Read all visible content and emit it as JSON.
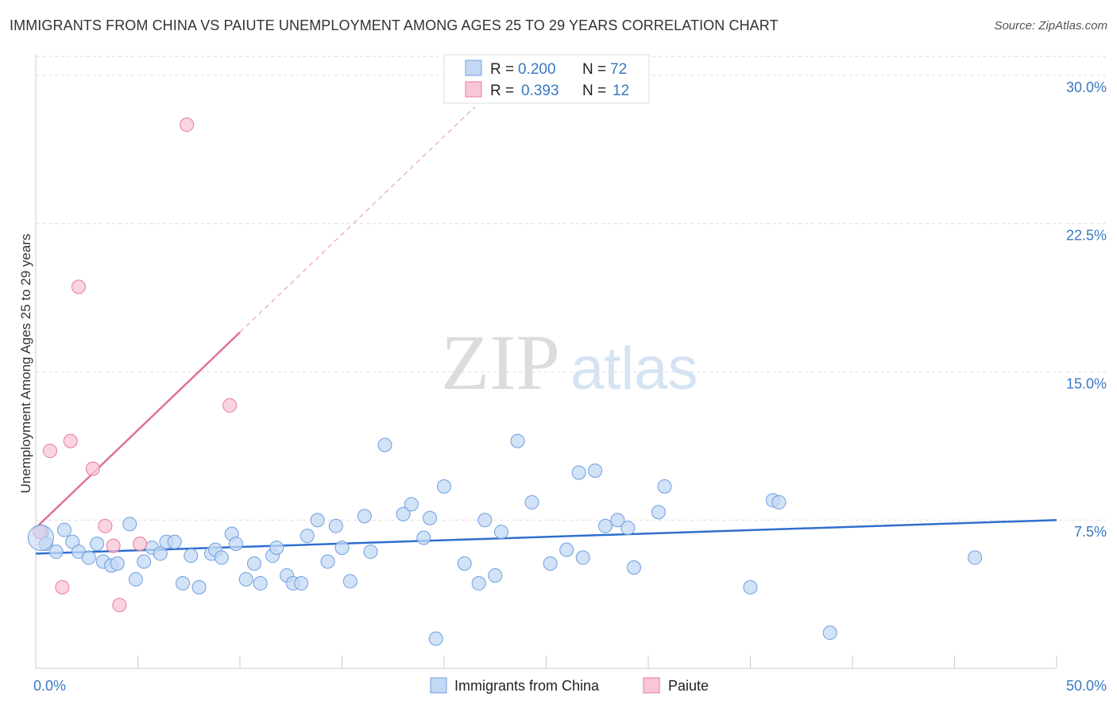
{
  "title": "IMMIGRANTS FROM CHINA VS PAIUTE UNEMPLOYMENT AMONG AGES 25 TO 29 YEARS CORRELATION CHART",
  "source": "Source: ZipAtlas.com",
  "watermark": {
    "zip": "ZIP",
    "atlas": "atlas"
  },
  "colors": {
    "china": "#6f9fde",
    "china_fill": "#c3d8f4",
    "paiute": "#e8799b",
    "paiute_fill": "#f8c6d5",
    "axis_label": "#3a78c3"
  },
  "legend": {
    "rows": [
      {
        "r_label": "R =",
        "r_value": "0.200",
        "n_label": "N =",
        "n_value": "72"
      },
      {
        "r_label": "R =",
        "r_value": "0.393",
        "n_label": "N =",
        "n_value": "12"
      }
    ]
  },
  "bottom_legend": [
    "Immigrants from China",
    "Paiute"
  ],
  "chart_data": {
    "type": "scatter",
    "title": "IMMIGRANTS FROM CHINA VS PAIUTE UNEMPLOYMENT AMONG AGES 25 TO 29 YEARS CORRELATION CHART",
    "xlabel": "",
    "ylabel": "Unemployment Among Ages 25 to 29 years",
    "xlim": [
      0,
      50
    ],
    "ylim": [
      0,
      31
    ],
    "x_tick_labels": [
      "0.0%",
      "50.0%"
    ],
    "y_ticks": [
      7.5,
      15.0,
      22.5,
      30.0
    ],
    "y_tick_labels": [
      "7.5%",
      "15.0%",
      "22.5%",
      "30.0%"
    ],
    "grid": "horizontal dashed",
    "legend_position": "top-center",
    "series": [
      {
        "name": "Immigrants from China",
        "trend": {
          "x": [
            0,
            50
          ],
          "y": [
            5.8,
            7.5
          ]
        },
        "points": [
          [
            0.3,
            6.9
          ],
          [
            0.5,
            6.3
          ],
          [
            1.0,
            5.9
          ],
          [
            1.4,
            7.0
          ],
          [
            1.8,
            6.4
          ],
          [
            2.1,
            5.9
          ],
          [
            2.6,
            5.6
          ],
          [
            3.0,
            6.3
          ],
          [
            3.3,
            5.4
          ],
          [
            3.7,
            5.2
          ],
          [
            4.0,
            5.3
          ],
          [
            4.6,
            7.3
          ],
          [
            4.9,
            4.5
          ],
          [
            5.3,
            5.4
          ],
          [
            5.7,
            6.1
          ],
          [
            6.1,
            5.8
          ],
          [
            6.4,
            6.4
          ],
          [
            6.8,
            6.4
          ],
          [
            7.2,
            4.3
          ],
          [
            7.6,
            5.7
          ],
          [
            8.0,
            4.1
          ],
          [
            8.6,
            5.8
          ],
          [
            8.8,
            6.0
          ],
          [
            9.1,
            5.6
          ],
          [
            9.6,
            6.8
          ],
          [
            9.8,
            6.3
          ],
          [
            10.3,
            4.5
          ],
          [
            10.7,
            5.3
          ],
          [
            11.0,
            4.3
          ],
          [
            11.6,
            5.7
          ],
          [
            11.8,
            6.1
          ],
          [
            12.3,
            4.7
          ],
          [
            12.6,
            4.3
          ],
          [
            13.0,
            4.3
          ],
          [
            13.3,
            6.7
          ],
          [
            13.8,
            7.5
          ],
          [
            14.3,
            5.4
          ],
          [
            14.7,
            7.2
          ],
          [
            15.0,
            6.1
          ],
          [
            15.4,
            4.4
          ],
          [
            16.1,
            7.7
          ],
          [
            16.4,
            5.9
          ],
          [
            17.1,
            11.3
          ],
          [
            18.0,
            7.8
          ],
          [
            18.4,
            8.3
          ],
          [
            19.0,
            6.6
          ],
          [
            19.3,
            7.6
          ],
          [
            19.6,
            1.5
          ],
          [
            20.0,
            9.2
          ],
          [
            21.0,
            5.3
          ],
          [
            21.7,
            4.3
          ],
          [
            22.0,
            7.5
          ],
          [
            22.5,
            4.7
          ],
          [
            22.8,
            6.9
          ],
          [
            23.6,
            11.5
          ],
          [
            24.3,
            8.4
          ],
          [
            25.2,
            5.3
          ],
          [
            26.0,
            6.0
          ],
          [
            26.6,
            9.9
          ],
          [
            26.8,
            5.6
          ],
          [
            27.4,
            10.0
          ],
          [
            27.9,
            7.2
          ],
          [
            28.5,
            7.5
          ],
          [
            29.0,
            7.1
          ],
          [
            29.3,
            5.1
          ],
          [
            30.5,
            7.9
          ],
          [
            30.8,
            9.2
          ],
          [
            35.0,
            4.1
          ],
          [
            36.1,
            8.5
          ],
          [
            36.4,
            8.4
          ],
          [
            38.9,
            1.8
          ],
          [
            46.0,
            5.6
          ]
        ]
      },
      {
        "name": "Paiute",
        "trend": {
          "x": [
            0,
            10
          ],
          "y": [
            7.1,
            17.0
          ]
        },
        "trend_extended": {
          "x": [
            10,
            21.5
          ],
          "y": [
            17.0,
            28.4
          ]
        },
        "points": [
          [
            0.2,
            6.9
          ],
          [
            0.7,
            11.0
          ],
          [
            1.3,
            4.1
          ],
          [
            1.7,
            11.5
          ],
          [
            2.1,
            19.3
          ],
          [
            2.8,
            10.1
          ],
          [
            3.4,
            7.2
          ],
          [
            3.8,
            6.2
          ],
          [
            4.1,
            3.2
          ],
          [
            5.1,
            6.3
          ],
          [
            7.4,
            27.5
          ],
          [
            9.5,
            13.3
          ]
        ]
      }
    ]
  }
}
